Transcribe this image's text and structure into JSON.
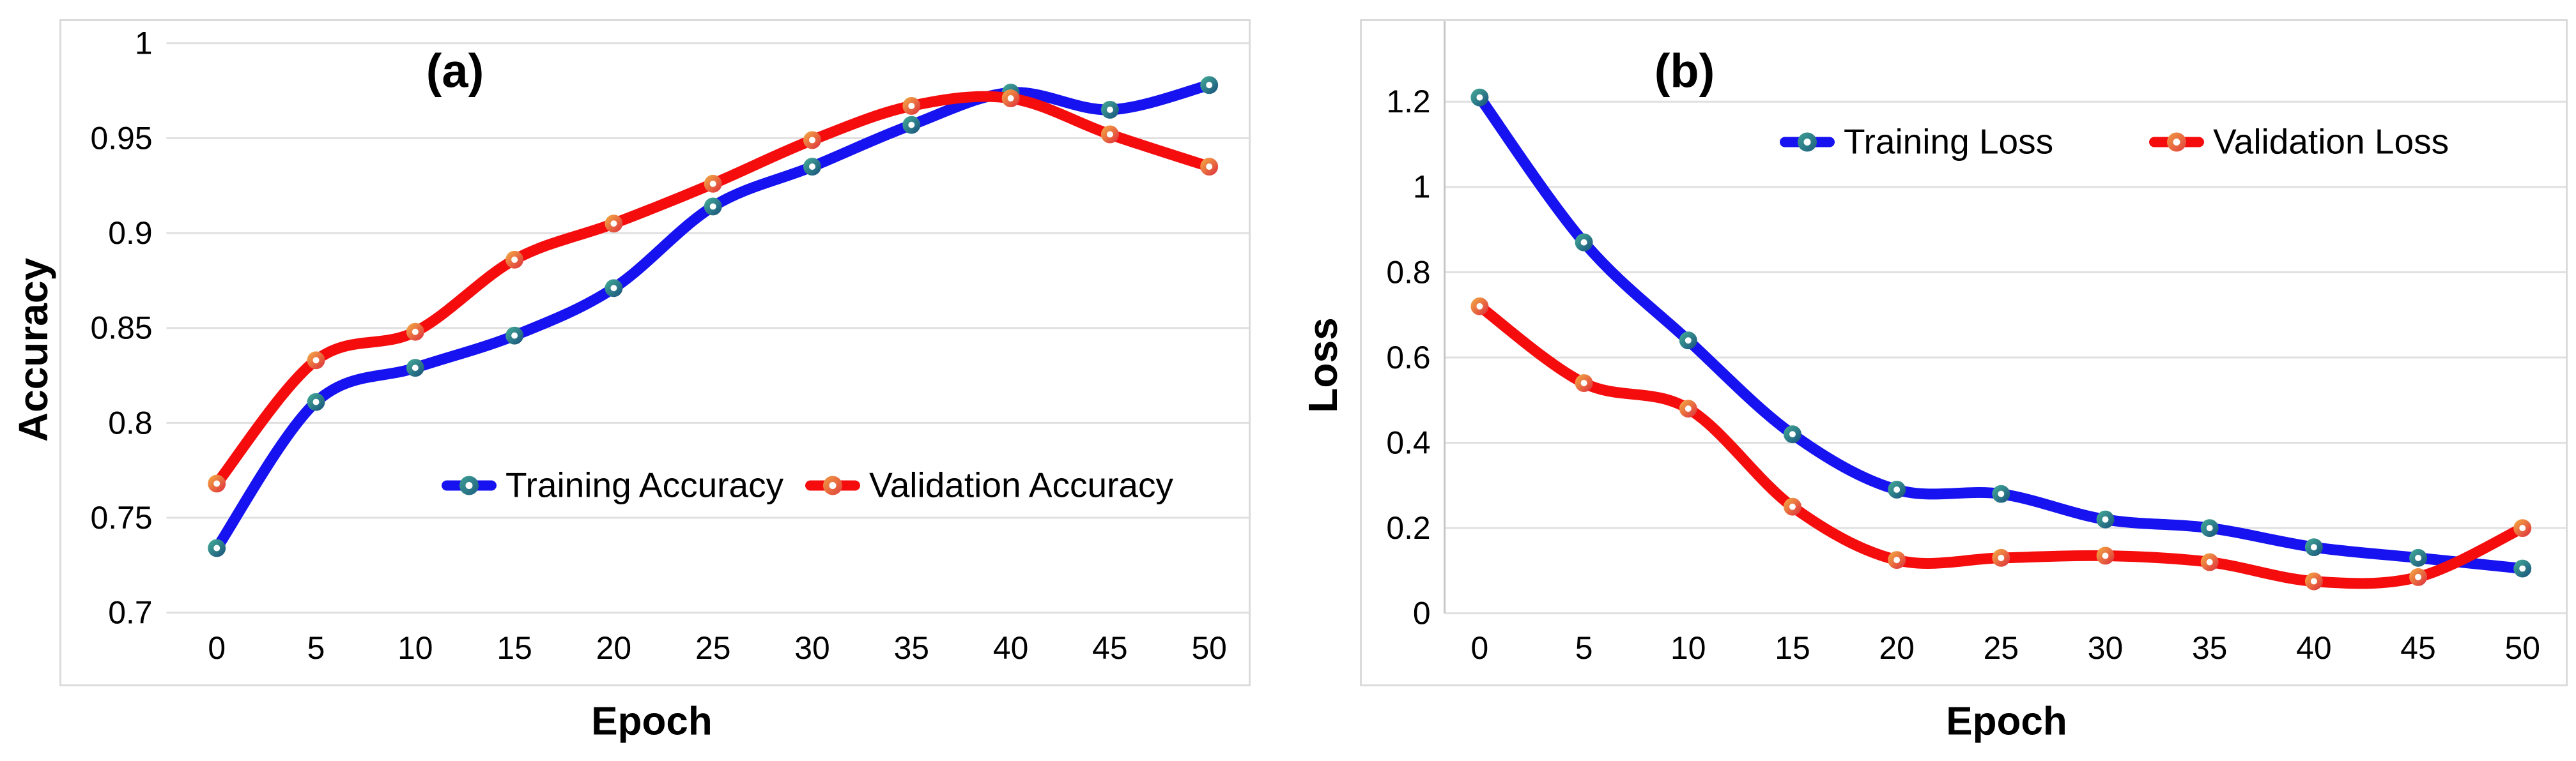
{
  "figure": {
    "background_color": "#ffffff",
    "text_color": "#000000",
    "gridline_color": "#e0e0e0",
    "frame_border_color": "#dbdbdb",
    "axis_line_color": "#c6c6c6"
  },
  "chart_data": [
    {
      "type": "line",
      "panel_label": "(a)",
      "xlabel": "Epoch",
      "ylabel": "Accuracy",
      "categories": [
        0,
        5,
        10,
        15,
        20,
        25,
        30,
        35,
        40,
        45,
        50
      ],
      "x_tick_labels": [
        "0",
        "5",
        "10",
        "15",
        "20",
        "25",
        "30",
        "35",
        "40",
        "45",
        "50"
      ],
      "y_tick_labels": [
        "1",
        "0.95",
        "0.9",
        "0.85",
        "0.8",
        "0.75",
        "0.7"
      ],
      "ylim": [
        0.7,
        1.0
      ],
      "grid": "horizontal",
      "legend_position": "inside-lower-center",
      "series": [
        {
          "name": "Training Accuracy",
          "color": "#1612f0",
          "marker": "donut-circle",
          "marker_gradient": [
            "#3ea093",
            "#1f5f80"
          ],
          "values": [
            0.734,
            0.811,
            0.829,
            0.846,
            0.871,
            0.914,
            0.935,
            0.957,
            0.974,
            0.965,
            0.978
          ]
        },
        {
          "name": "Validation Accuracy",
          "color": "#f50d0d",
          "marker": "donut-circle",
          "marker_gradient": [
            "#f09b43",
            "#e1413e"
          ],
          "values": [
            0.768,
            0.833,
            0.848,
            0.886,
            0.905,
            0.926,
            0.949,
            0.967,
            0.971,
            0.952,
            0.935
          ]
        }
      ]
    },
    {
      "type": "line",
      "panel_label": "(b)",
      "xlabel": "Epoch",
      "ylabel": "Loss",
      "categories": [
        0,
        5,
        10,
        15,
        20,
        25,
        30,
        35,
        40,
        45,
        50
      ],
      "x_tick_labels": [
        "0",
        "5",
        "10",
        "15",
        "20",
        "25",
        "30",
        "35",
        "40",
        "45",
        "50"
      ],
      "y_tick_labels": [
        "1.2",
        "1",
        "0.8",
        "0.6",
        "0.4",
        "0.2",
        "0"
      ],
      "ylim": [
        0,
        1.2
      ],
      "grid": "horizontal",
      "legend_position": "inside-top-center",
      "series": [
        {
          "name": "Training Loss",
          "color": "#1612f0",
          "marker": "donut-circle",
          "marker_gradient": [
            "#3ea093",
            "#1f5f80"
          ],
          "values": [
            1.21,
            0.87,
            0.64,
            0.42,
            0.29,
            0.28,
            0.22,
            0.2,
            0.155,
            0.13,
            0.105
          ]
        },
        {
          "name": "Validation Loss",
          "color": "#f50d0d",
          "marker": "donut-circle",
          "marker_gradient": [
            "#f09b43",
            "#e1413e"
          ],
          "values": [
            0.72,
            0.54,
            0.48,
            0.25,
            0.125,
            0.13,
            0.135,
            0.12,
            0.075,
            0.085,
            0.2
          ]
        }
      ]
    }
  ]
}
